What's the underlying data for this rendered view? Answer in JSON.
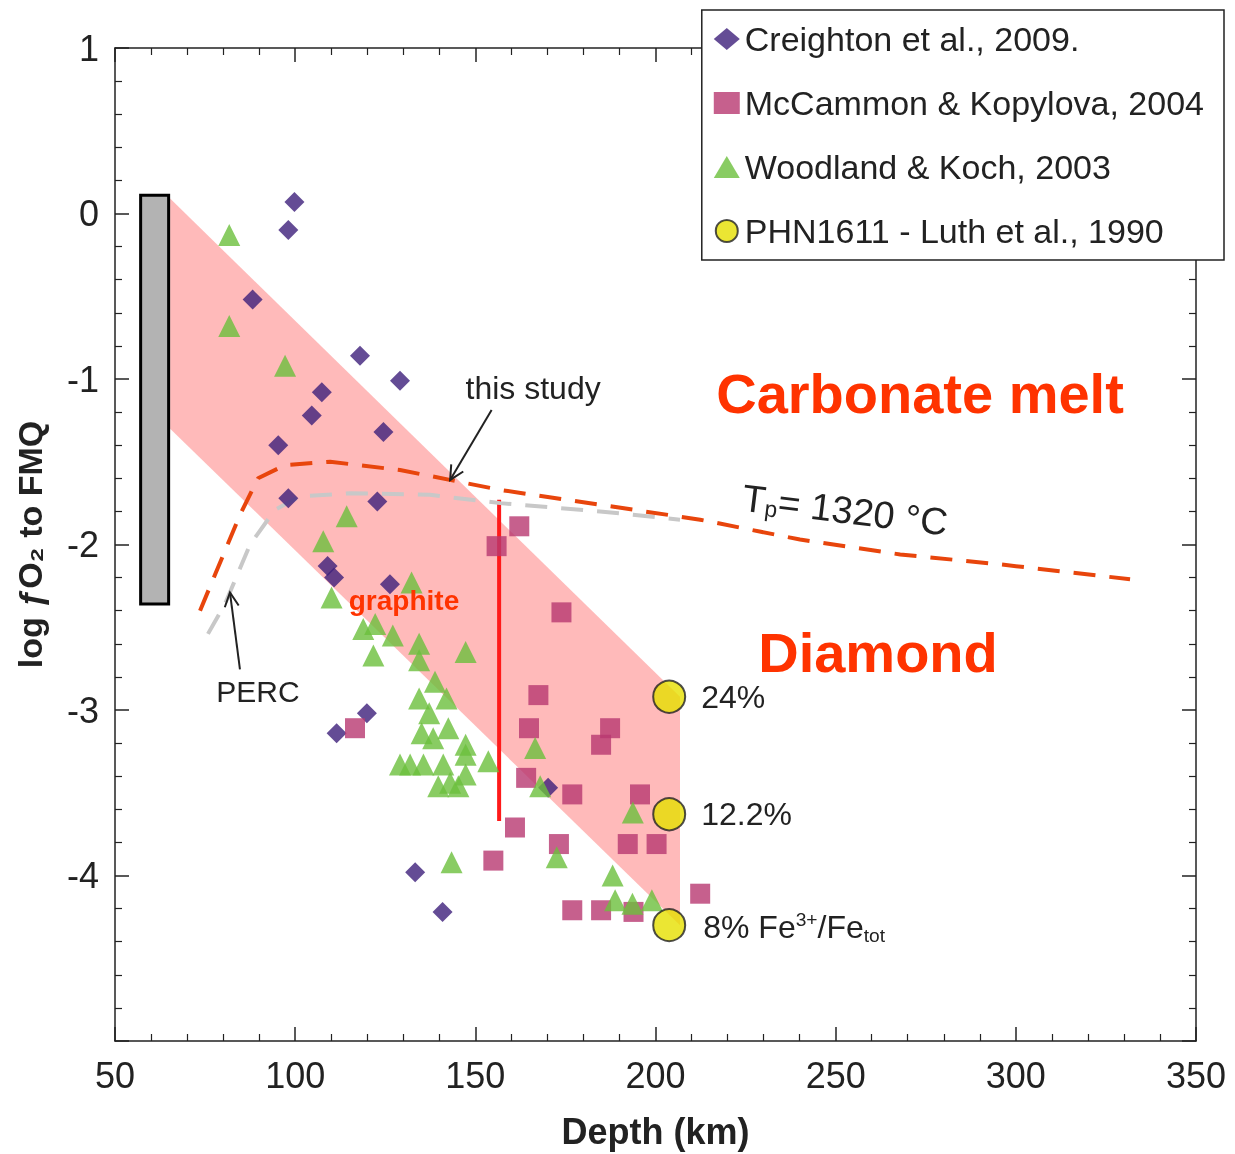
{
  "chart_data": {
    "type": "scatter",
    "xlabel": "Depth (km)",
    "ylabel": "log ƒO₂ to FMQ",
    "xlim": [
      50,
      350
    ],
    "xticks": [
      50,
      100,
      150,
      200,
      250,
      300,
      350
    ],
    "ylim": [
      -5,
      1
    ],
    "yticks": [
      {
        "value": -5,
        "label": null
      },
      -4,
      -3,
      -2,
      -1,
      0,
      1
    ],
    "legend": "top right",
    "grid": false,
    "annotations": [
      "Carbonate melt",
      "Diamond",
      "graphite",
      {
        "text": "this study",
        "x": 143,
        "y": -1.61
      },
      {
        "text": "PERC",
        "x": 81.9,
        "y": -2.29
      },
      {
        "text": "T$_{p}$= 1320 °C",
        "x": 252.6,
        "y": -2.01
      },
      {
        "text": "24%",
        "x": 203.8,
        "y": -2.92
      },
      {
        "text": "12.2%",
        "x": 203.8,
        "y": -3.63
      },
      {
        "text": "8% Fe$^{3+}$/Fe$_{tot}$",
        "x": 203.8,
        "y": -4.3
      }
    ],
    "series": [
      {
        "type": "area",
        "color": "#ffb3b3",
        "x": [
          65.3,
          206.8,
          206.8,
          65.3
        ],
        "values": [
          0.09,
          -2.92,
          -4.3,
          -1.3
        ]
      },
      {
        "type": "bar",
        "color": "#b3b3b3",
        "x": [
          61
        ],
        "base": [
          -2.36
        ],
        "values": [
          2.47
        ]
      },
      {
        "type": "line",
        "color": "#ff1a1a",
        "line_style": "solid",
        "marker": "none",
        "x": [
          156.6,
          156.6
        ],
        "values": [
          -1.73,
          -3.67
        ]
      },
      {
        "type": "line",
        "color": "#c8c8c8",
        "line_style": "dashed",
        "marker": "none",
        "x": [
          75.8,
          80.5,
          87.5,
          94.4,
          101.3,
          115.2,
          137.4,
          156.9,
          184.6,
          206.8
        ],
        "values": [
          -2.54,
          -2.36,
          -2.0,
          -1.79,
          -1.71,
          -1.69,
          -1.7,
          -1.75,
          -1.8,
          -1.85
        ]
      },
      {
        "type": "line",
        "color": "#e8450c",
        "line_style": "dashed",
        "marker": "none",
        "x": [
          73.6,
          77.8,
          84.7,
          89.7,
          97.2,
          109.7,
          129.1,
          156.9,
          184.6,
          212.4,
          240.1,
          267.9,
          295.6,
          331.7
        ],
        "values": [
          -2.4,
          -2.18,
          -1.82,
          -1.6,
          -1.52,
          -1.5,
          -1.55,
          -1.67,
          -1.76,
          -1.85,
          -1.97,
          -2.06,
          -2.12,
          -2.21
        ]
      },
      {
        "name": "Creighton et al., 2009.",
        "marker": "diamond",
        "color": "#3d1f7a",
        "x": [
          99.8,
          98.1,
          88.2,
          118.0,
          129.1,
          107.4,
          104.6,
          124.5,
          95.3,
          98.1,
          122.8,
          109.0,
          110.8,
          126.3,
          119.9,
          111.5,
          170.2,
          133.3,
          140.9
        ],
        "values": [
          0.07,
          -0.1,
          -0.52,
          -0.86,
          -1.01,
          -1.08,
          -1.22,
          -1.32,
          -1.4,
          -1.72,
          -1.74,
          -2.13,
          -2.2,
          -2.24,
          -3.02,
          -3.14,
          -3.47,
          -3.98,
          -4.22
        ]
      },
      {
        "name": "McCammon & Kopylova, 2004",
        "marker": "square",
        "color": "#b83870",
        "x": [
          162.2,
          155.9,
          173.9,
          167.5,
          164.9,
          187.4,
          184.9,
          164.1,
          176.9,
          195.7,
          161.0,
          173.2,
          192.3,
          200.3,
          155.0,
          212.4,
          176.9,
          184.9,
          193.9,
          116.6
        ],
        "values": [
          -1.89,
          -2.01,
          -2.41,
          -2.91,
          -3.11,
          -3.11,
          -3.21,
          -3.41,
          -3.51,
          -3.51,
          -3.71,
          -3.81,
          -3.81,
          -3.81,
          -3.91,
          -4.11,
          -4.21,
          -4.21,
          -4.22,
          -3.11
        ]
      },
      {
        "name": "Woodland & Koch, 2003",
        "marker": "triangle",
        "color": "#6cbf3c",
        "x": [
          81.7,
          81.7,
          97.2,
          114.3,
          107.8,
          110.1,
          132.3,
          118.9,
          122.2,
          127.1,
          121.7,
          134.4,
          134.4,
          147.3,
          138.8,
          142.0,
          134.4,
          137.2,
          142.5,
          135.1,
          138.3,
          147.3,
          147.3,
          166.6,
          129.1,
          131.9,
          135.6,
          141.1,
          153.6,
          147.3,
          139.7,
          143.0,
          145.3,
          168.0,
          193.7,
          143.4,
          172.6,
          188.1,
          188.8,
          193.6,
          199.0
        ],
        "values": [
          -0.13,
          -0.68,
          -0.92,
          -1.83,
          -1.98,
          -2.32,
          -2.23,
          -2.51,
          -2.48,
          -2.55,
          -2.67,
          -2.6,
          -2.7,
          -2.65,
          -2.83,
          -2.93,
          -2.93,
          -3.02,
          -3.11,
          -3.14,
          -3.17,
          -3.21,
          -3.27,
          -3.23,
          -3.33,
          -3.33,
          -3.33,
          -3.33,
          -3.31,
          -3.39,
          -3.46,
          -3.44,
          -3.46,
          -3.46,
          -3.62,
          -3.92,
          -3.89,
          -4.0,
          -4.15,
          -4.17,
          -4.15
        ]
      },
      {
        "name": "PHN1611 - Luth et al., 1990",
        "marker": "circle",
        "color": "#e6e000",
        "x": [
          203.8,
          203.8,
          203.8
        ],
        "values": [
          -2.92,
          -3.63,
          -4.3
        ]
      }
    ]
  }
}
